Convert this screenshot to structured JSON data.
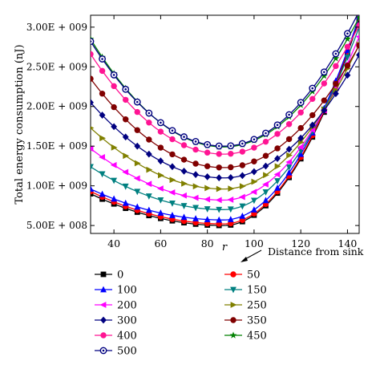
{
  "chart_data": {
    "type": "line",
    "title": "",
    "xlabel": "r",
    "ylabel": "Total energy consumption (nJ)",
    "xlim": [
      30,
      145
    ],
    "ylim": [
      400000000,
      3150000000
    ],
    "x_ticks": [
      40,
      60,
      80,
      100,
      120,
      140
    ],
    "y_ticks": [
      500000000,
      1000000000,
      1500000000,
      2000000000,
      2500000000,
      3000000000
    ],
    "y_tick_labels": [
      "5.00E + 008",
      "1.00E + 009",
      "1.50E + 009",
      "2.00E + 009",
      "2.50E + 009",
      "3.00E + 009"
    ],
    "grid": false,
    "legend_title": "Distance from sink",
    "legend_position": "bottom",
    "x": [
      30,
      35,
      40,
      45,
      50,
      55,
      60,
      65,
      70,
      75,
      80,
      85,
      90,
      95,
      100,
      105,
      110,
      115,
      120,
      125,
      130,
      135,
      140,
      145
    ],
    "series": [
      {
        "name": "0",
        "color": "#000000",
        "marker": "square",
        "minimum": 500000000,
        "left_value": 900000000,
        "right_value": 3100000000
      },
      {
        "name": "50",
        "color": "#ff0000",
        "marker": "circle",
        "minimum": 520000000,
        "left_value": 930000000,
        "right_value": 3120000000
      },
      {
        "name": "100",
        "color": "#0000ff",
        "marker": "triangle-up",
        "minimum": 570000000,
        "left_value": 960000000,
        "right_value": 3130000000
      },
      {
        "name": "150",
        "color": "#008080",
        "marker": "triangle-down",
        "minimum": 700000000,
        "left_value": 1240000000,
        "right_value": 3000000000
      },
      {
        "name": "200",
        "color": "#ff00ff",
        "marker": "triangle-left",
        "minimum": 820000000,
        "left_value": 1470000000,
        "right_value": 2880000000
      },
      {
        "name": "250",
        "color": "#808000",
        "marker": "triangle-right",
        "minimum": 960000000,
        "left_value": 1730000000,
        "right_value": 2780000000
      },
      {
        "name": "300",
        "color": "#000080",
        "marker": "diamond",
        "minimum": 1100000000,
        "left_value": 2050000000,
        "right_value": 2650000000
      },
      {
        "name": "350",
        "color": "#800000",
        "marker": "circle",
        "minimum": 1230000000,
        "left_value": 2350000000,
        "right_value": 2770000000
      },
      {
        "name": "400",
        "color": "#ff1493",
        "marker": "circle",
        "minimum": 1400000000,
        "left_value": 2660000000,
        "right_value": 3020000000
      },
      {
        "name": "450",
        "color": "#008000",
        "marker": "star",
        "minimum": 1490000000,
        "left_value": 2850000000,
        "right_value": 3120000000
      },
      {
        "name": "500",
        "color": "#000080",
        "marker": "circle-open",
        "minimum": 1500000000,
        "left_value": 2820000000,
        "right_value": 3200000000
      }
    ],
    "min_x": 87,
    "legend_columns": [
      [
        "0",
        "100",
        "200",
        "300",
        "400",
        "500"
      ],
      [
        "50",
        "150",
        "250",
        "350",
        "450"
      ]
    ]
  }
}
